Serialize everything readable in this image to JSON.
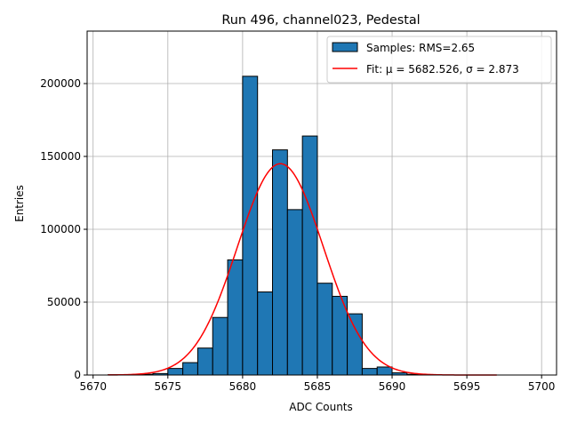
{
  "chart_data": {
    "type": "bar",
    "title": "Run 496, channel023, Pedestal",
    "xlabel": "ADC Counts",
    "ylabel": "Entries",
    "xlim": [
      5669.6,
      5701.0
    ],
    "ylim": [
      0,
      236000
    ],
    "x_ticks": [
      5670,
      5675,
      5680,
      5685,
      5690,
      5695,
      5700
    ],
    "y_ticks": [
      0,
      50000,
      100000,
      150000,
      200000
    ],
    "grid": true,
    "legend_position": "top-right",
    "bin_width": 1,
    "bins": [
      {
        "x0": 5671,
        "value": 200
      },
      {
        "x0": 5672,
        "value": 300
      },
      {
        "x0": 5673,
        "value": 500
      },
      {
        "x0": 5674,
        "value": 1000
      },
      {
        "x0": 5675,
        "value": 4500
      },
      {
        "x0": 5676,
        "value": 8500
      },
      {
        "x0": 5677,
        "value": 18500
      },
      {
        "x0": 5678,
        "value": 39500
      },
      {
        "x0": 5679,
        "value": 79000
      },
      {
        "x0": 5680,
        "value": 205000
      },
      {
        "x0": 5681,
        "value": 57000
      },
      {
        "x0": 5682,
        "value": 154500
      },
      {
        "x0": 5683,
        "value": 113500
      },
      {
        "x0": 5684,
        "value": 164000
      },
      {
        "x0": 5685,
        "value": 63000
      },
      {
        "x0": 5686,
        "value": 54000
      },
      {
        "x0": 5687,
        "value": 42000
      },
      {
        "x0": 5688,
        "value": 4500
      },
      {
        "x0": 5689,
        "value": 5500
      },
      {
        "x0": 5690,
        "value": 1500
      },
      {
        "x0": 5691,
        "value": 500
      },
      {
        "x0": 5692,
        "value": 200
      }
    ],
    "fit": {
      "type": "gaussian",
      "mu": 5682.526,
      "sigma": 2.873,
      "amplitude": 145000,
      "x_range": [
        5671,
        5697
      ]
    },
    "legend": [
      {
        "label": "Samples: RMS=2.65",
        "kind": "patch",
        "color": "#1f77b4"
      },
      {
        "label": "Fit: μ = 5682.526, σ = 2.873",
        "kind": "line",
        "color": "#ff0000"
      }
    ],
    "colors": {
      "bar_fill": "#1f77b4",
      "bar_edge": "#000000",
      "fit_line": "#ff0000",
      "grid": "#b0b0b0"
    }
  }
}
